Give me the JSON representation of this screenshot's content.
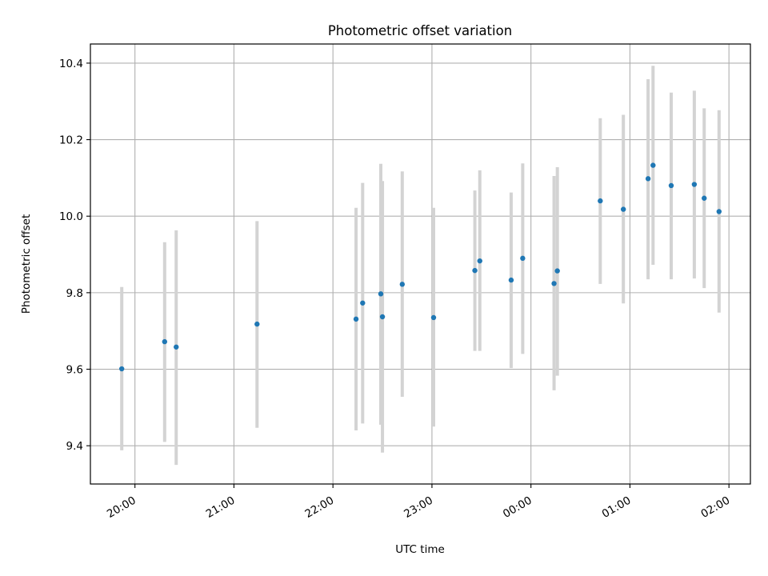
{
  "chart_data": {
    "type": "scatter",
    "title": "Photometric offset variation",
    "xlabel": "UTC time",
    "ylabel": "Photometric offset",
    "x_tick_labels": [
      "20:00",
      "21:00",
      "22:00",
      "23:00",
      "00:00",
      "01:00",
      "02:00"
    ],
    "y_tick_labels": [
      "9.4",
      "9.6",
      "9.8",
      "10.0",
      "10.2",
      "10.4"
    ],
    "y_ticks": [
      9.4,
      9.6,
      9.8,
      10.0,
      10.2,
      10.4
    ],
    "ylim": [
      9.3,
      10.45
    ],
    "xlim": [
      "19:33",
      "02:13"
    ],
    "grid": true,
    "marker_color": "#1f77b4",
    "errorbar_color": "#d3d3d3",
    "points": [
      {
        "time": "19:52",
        "y": 9.601,
        "ylow": 9.388,
        "yhigh": 9.815
      },
      {
        "time": "20:18",
        "y": 9.672,
        "ylow": 9.41,
        "yhigh": 9.932
      },
      {
        "time": "20:25",
        "y": 9.658,
        "ylow": 9.35,
        "yhigh": 9.963
      },
      {
        "time": "21:14",
        "y": 9.718,
        "ylow": 9.447,
        "yhigh": 9.987
      },
      {
        "time": "22:14",
        "y": 9.731,
        "ylow": 9.44,
        "yhigh": 10.022
      },
      {
        "time": "22:18",
        "y": 9.773,
        "ylow": 9.458,
        "yhigh": 10.087
      },
      {
        "time": "22:29",
        "y": 9.797,
        "ylow": 9.455,
        "yhigh": 10.137
      },
      {
        "time": "22:30",
        "y": 9.737,
        "ylow": 9.382,
        "yhigh": 10.092
      },
      {
        "time": "22:42",
        "y": 9.822,
        "ylow": 9.528,
        "yhigh": 10.117
      },
      {
        "time": "23:01",
        "y": 9.735,
        "ylow": 9.45,
        "yhigh": 10.022
      },
      {
        "time": "23:26",
        "y": 9.858,
        "ylow": 9.648,
        "yhigh": 10.067
      },
      {
        "time": "23:29",
        "y": 9.883,
        "ylow": 9.648,
        "yhigh": 10.12
      },
      {
        "time": "23:48",
        "y": 9.833,
        "ylow": 9.603,
        "yhigh": 10.062
      },
      {
        "time": "23:55",
        "y": 9.89,
        "ylow": 9.64,
        "yhigh": 10.138
      },
      {
        "time": "00:14",
        "y": 9.824,
        "ylow": 9.545,
        "yhigh": 10.105
      },
      {
        "time": "00:16",
        "y": 9.857,
        "ylow": 9.583,
        "yhigh": 10.128
      },
      {
        "time": "00:42",
        "y": 10.04,
        "ylow": 9.823,
        "yhigh": 10.256
      },
      {
        "time": "00:56",
        "y": 10.018,
        "ylow": 9.772,
        "yhigh": 10.265
      },
      {
        "time": "01:11",
        "y": 10.098,
        "ylow": 9.835,
        "yhigh": 10.358
      },
      {
        "time": "01:14",
        "y": 10.133,
        "ylow": 9.873,
        "yhigh": 10.393
      },
      {
        "time": "01:25",
        "y": 10.08,
        "ylow": 9.835,
        "yhigh": 10.323
      },
      {
        "time": "01:39",
        "y": 10.083,
        "ylow": 9.837,
        "yhigh": 10.328
      },
      {
        "time": "01:45",
        "y": 10.047,
        "ylow": 9.812,
        "yhigh": 10.282
      },
      {
        "time": "01:54",
        "y": 10.012,
        "ylow": 9.748,
        "yhigh": 10.277
      }
    ]
  }
}
